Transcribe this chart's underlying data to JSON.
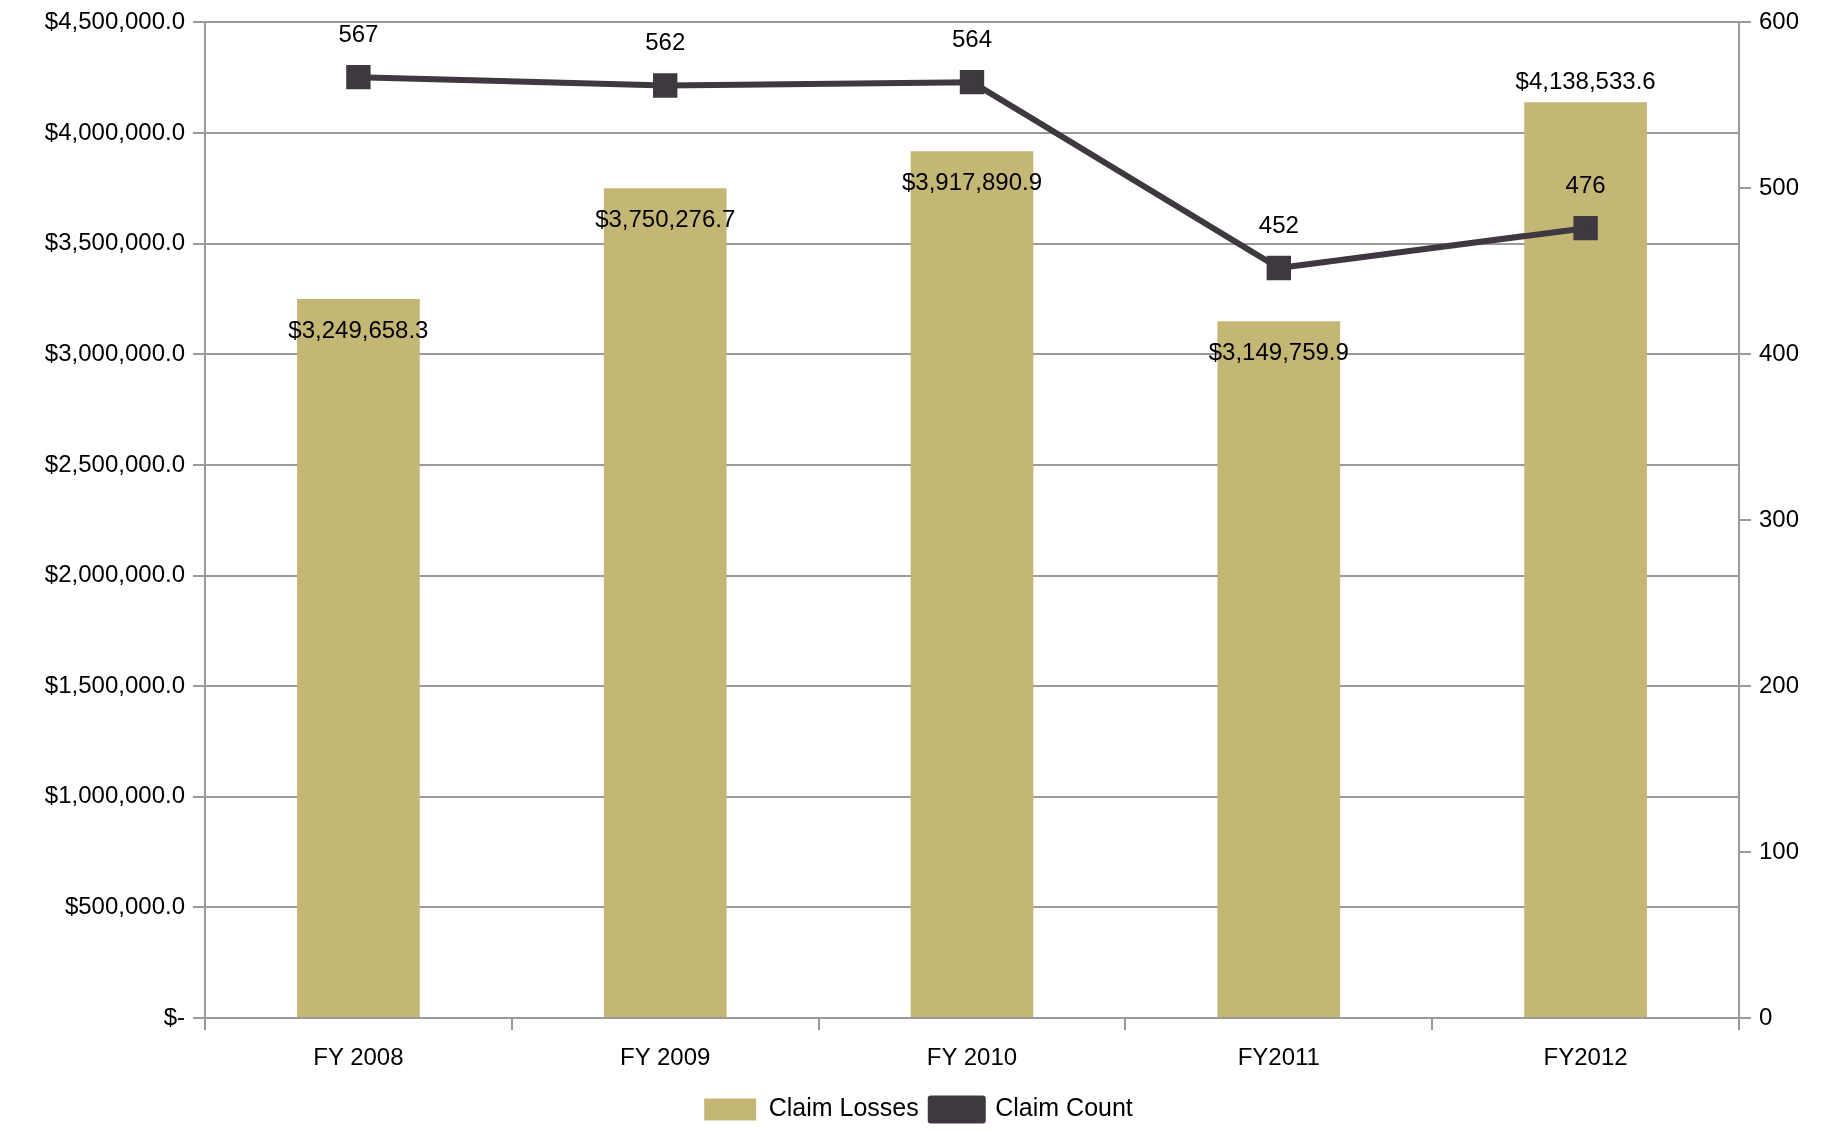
{
  "chart_data": {
    "type": "bar",
    "categories": [
      "FY 2008",
      "FY 2009",
      "FY 2010",
      "FY2011",
      "FY2012"
    ],
    "series": [
      {
        "name": "Claim Losses",
        "color": "#c4b776",
        "values": [
          3249658.3,
          3750276.7,
          3917890.9,
          3149759.9,
          4138533.6
        ],
        "value_labels": [
          "$3,249,658.3",
          "$3,750,276.7",
          "$3,917,890.9",
          "$3,149,759.9",
          "$4,138,533.6"
        ]
      },
      {
        "name": "Claim Count",
        "type": "line",
        "axis": "y2",
        "color": "#403840",
        "values": [
          567,
          562,
          564,
          452,
          476
        ],
        "value_labels": [
          "567",
          "562",
          "564",
          "452",
          "476"
        ]
      }
    ],
    "ylim": [
      0,
      4500000
    ],
    "yticks": [
      {
        "value": 0,
        "label": "$-"
      },
      {
        "value": 500000,
        "label": "$500,000.0"
      },
      {
        "value": 1000000,
        "label": "$1,000,000.0"
      },
      {
        "value": 1500000,
        "label": "$1,500,000.0"
      },
      {
        "value": 2000000,
        "label": "$2,000,000.0"
      },
      {
        "value": 2500000,
        "label": "$2,500,000.0"
      },
      {
        "value": 3000000,
        "label": "$3,000,000.0"
      },
      {
        "value": 3500000,
        "label": "$3,500,000.0"
      },
      {
        "value": 4000000,
        "label": "$4,000,000.0"
      },
      {
        "value": 4500000,
        "label": "$4,500,000.0"
      }
    ],
    "y2lim": [
      0,
      600
    ],
    "y2ticks": [
      0,
      100,
      200,
      300,
      400,
      500,
      600
    ],
    "grid": "y",
    "legend": "bottom",
    "marker": "square",
    "line_style": "solid"
  }
}
